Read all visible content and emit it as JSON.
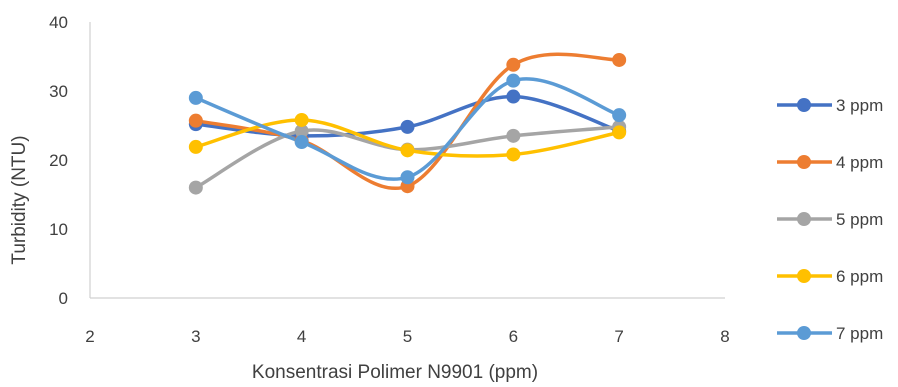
{
  "chart_data": {
    "type": "line",
    "title": "",
    "xlabel": "Konsentrasi Polimer N9901 (ppm)",
    "ylabel": "Turbidity (NTU)",
    "xlim": [
      2,
      8
    ],
    "ylim": [
      0,
      40
    ],
    "x_ticks": [
      "2",
      "3",
      "4",
      "5",
      "6",
      "7",
      "8"
    ],
    "y_ticks": [
      "0",
      "10",
      "20",
      "30",
      "40"
    ],
    "x": [
      3,
      4,
      5,
      6,
      7
    ],
    "grid": false,
    "legend_position": "right",
    "series": [
      {
        "name": "3 ppm",
        "color": "#4472c4",
        "values": [
          25.2,
          23.5,
          24.8,
          29.2,
          24.2
        ]
      },
      {
        "name": "4 ppm",
        "color": "#ed7d31",
        "values": [
          25.7,
          22.8,
          16.2,
          33.8,
          34.5
        ]
      },
      {
        "name": "5 ppm",
        "color": "#a5a5a5",
        "values": [
          16.0,
          24.2,
          21.5,
          23.5,
          24.8
        ]
      },
      {
        "name": "6 ppm",
        "color": "#ffc000",
        "values": [
          21.9,
          25.8,
          21.4,
          20.8,
          24.0
        ]
      },
      {
        "name": "7 ppm",
        "color": "#5b9bd5",
        "values": [
          29.0,
          22.6,
          17.5,
          31.5,
          26.5
        ]
      }
    ]
  }
}
